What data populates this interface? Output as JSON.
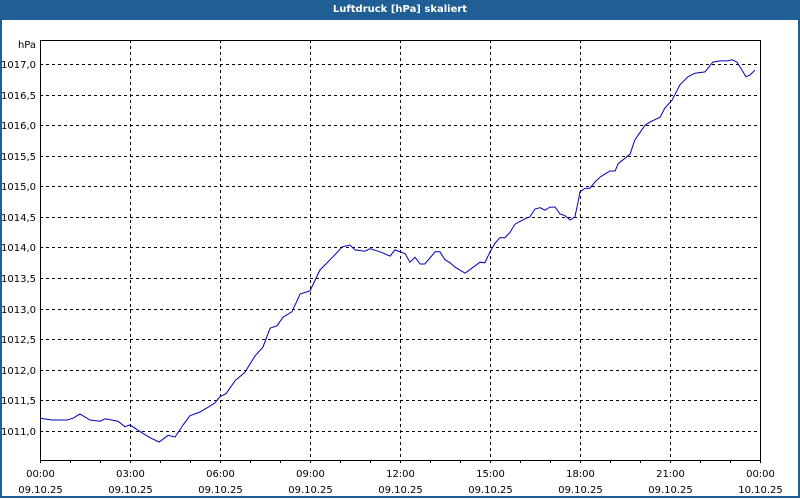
{
  "window": {
    "title": "Luftdruck [hPa] skaliert",
    "title_bg": "#1f5f96",
    "line_color": "#0000b4"
  },
  "chart_data": {
    "type": "line",
    "title": "Luftdruck [hPa] skaliert",
    "xlabel": "",
    "ylabel": "hPa",
    "y_unit_label": "hPa",
    "ylim": [
      1010.53,
      1017.39
    ],
    "xlim_hours": [
      0,
      24
    ],
    "grid": true,
    "legend": null,
    "y_ticks": [
      {
        "value": 1017.0,
        "label": "1017,0"
      },
      {
        "value": 1016.5,
        "label": "1016,5"
      },
      {
        "value": 1016.0,
        "label": "1016,0"
      },
      {
        "value": 1015.5,
        "label": "1015,5"
      },
      {
        "value": 1015.0,
        "label": "1015,0"
      },
      {
        "value": 1014.5,
        "label": "1014,5"
      },
      {
        "value": 1014.0,
        "label": "1014,0"
      },
      {
        "value": 1013.5,
        "label": "1013,5"
      },
      {
        "value": 1013.0,
        "label": "1013,0"
      },
      {
        "value": 1012.5,
        "label": "1012,5"
      },
      {
        "value": 1012.0,
        "label": "1012,0"
      },
      {
        "value": 1011.5,
        "label": "1011,5"
      },
      {
        "value": 1011.0,
        "label": "1011,0"
      }
    ],
    "x_ticks": [
      {
        "hour": 0,
        "time": "00:00",
        "date": "09.10.25"
      },
      {
        "hour": 3,
        "time": "03:00",
        "date": "09.10.25"
      },
      {
        "hour": 6,
        "time": "06:00",
        "date": "09.10.25"
      },
      {
        "hour": 9,
        "time": "09:00",
        "date": "09.10.25"
      },
      {
        "hour": 12,
        "time": "12:00",
        "date": "09.10.25"
      },
      {
        "hour": 15,
        "time": "15:00",
        "date": "09.10.25"
      },
      {
        "hour": 18,
        "time": "18:00",
        "date": "09.10.25"
      },
      {
        "hour": 21,
        "time": "21:00",
        "date": "09.10.25"
      },
      {
        "hour": 24,
        "time": "00:00",
        "date": "10.10.25"
      }
    ],
    "series": [
      {
        "name": "Luftdruck",
        "x_hours": [
          0.0,
          0.4,
          0.9,
          1.1,
          1.33,
          1.67,
          2.0,
          2.17,
          2.6,
          2.83,
          3.0,
          3.4,
          3.67,
          3.97,
          4.27,
          4.5,
          4.77,
          5.0,
          5.33,
          5.57,
          5.83,
          6.0,
          6.2,
          6.5,
          6.83,
          7.17,
          7.43,
          7.67,
          7.9,
          8.1,
          8.4,
          8.67,
          9.0,
          9.33,
          9.83,
          10.07,
          10.33,
          10.5,
          10.83,
          11.0,
          11.33,
          11.67,
          11.83,
          12.17,
          12.33,
          12.5,
          12.67,
          12.83,
          13.17,
          13.33,
          13.5,
          13.67,
          13.83,
          14.17,
          14.5,
          14.67,
          14.83,
          15.0,
          15.17,
          15.33,
          15.5,
          15.67,
          15.83,
          16.17,
          16.33,
          16.5,
          16.67,
          16.83,
          17.0,
          17.17,
          17.33,
          17.5,
          17.67,
          17.83,
          17.93,
          18.0,
          18.17,
          18.33,
          18.5,
          18.67,
          18.83,
          19.0,
          19.17,
          19.27,
          19.5,
          19.67,
          19.83,
          20.17,
          20.33,
          20.67,
          20.83,
          21.07,
          21.33,
          21.6,
          21.83,
          22.17,
          22.33,
          22.43,
          22.67,
          22.93,
          23.07,
          23.23,
          23.4,
          23.53,
          23.67,
          23.83
        ],
        "values": [
          1011.21,
          1011.18,
          1011.18,
          1011.21,
          1011.28,
          1011.18,
          1011.16,
          1011.2,
          1011.16,
          1011.07,
          1011.1,
          1010.97,
          1010.89,
          1010.82,
          1010.93,
          1010.9,
          1011.1,
          1011.25,
          1011.31,
          1011.38,
          1011.46,
          1011.56,
          1011.61,
          1011.82,
          1011.96,
          1012.23,
          1012.37,
          1012.68,
          1012.72,
          1012.86,
          1012.95,
          1013.24,
          1013.29,
          1013.63,
          1013.88,
          1014.01,
          1014.04,
          1013.96,
          1013.94,
          1013.98,
          1013.93,
          1013.86,
          1013.96,
          1013.9,
          1013.76,
          1013.84,
          1013.73,
          1013.73,
          1013.93,
          1013.93,
          1013.8,
          1013.75,
          1013.68,
          1013.58,
          1013.7,
          1013.76,
          1013.75,
          1013.93,
          1014.07,
          1014.16,
          1014.16,
          1014.25,
          1014.38,
          1014.47,
          1014.5,
          1014.63,
          1014.65,
          1014.61,
          1014.66,
          1014.66,
          1014.55,
          1014.52,
          1014.45,
          1014.5,
          1014.73,
          1014.91,
          1014.97,
          1014.97,
          1015.07,
          1015.15,
          1015.2,
          1015.25,
          1015.25,
          1015.37,
          1015.46,
          1015.53,
          1015.76,
          1016.0,
          1016.05,
          1016.13,
          1016.28,
          1016.41,
          1016.66,
          1016.79,
          1016.85,
          1016.87,
          1016.97,
          1017.03,
          1017.05,
          1017.05,
          1017.07,
          1017.03,
          1016.9,
          1016.79,
          1016.82,
          1016.9
        ]
      }
    ]
  }
}
